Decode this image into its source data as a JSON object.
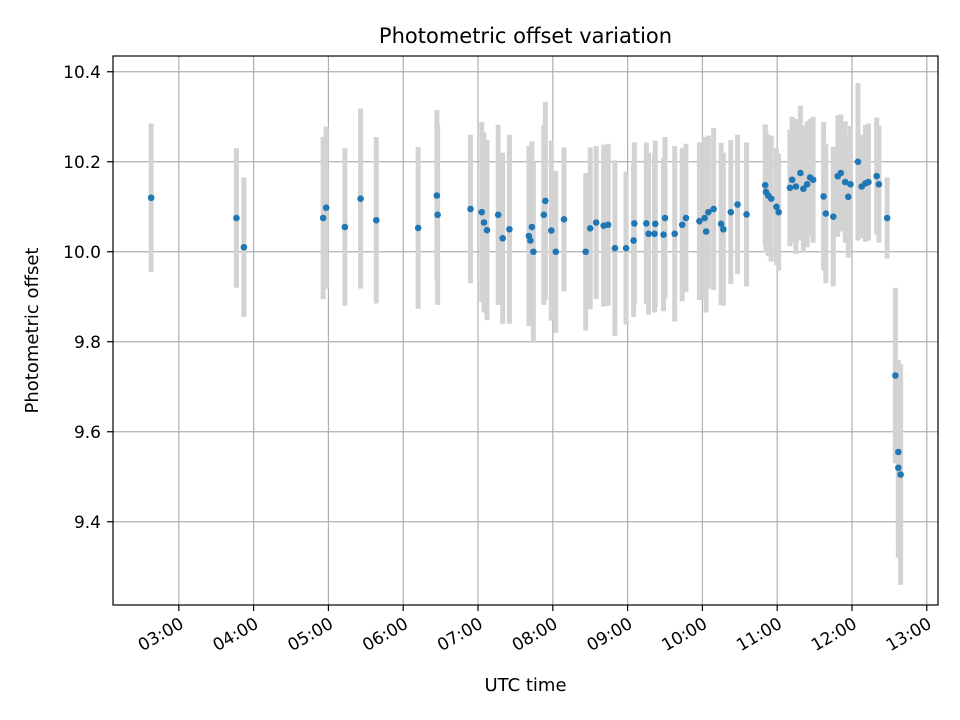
{
  "chart_data": {
    "type": "scatter",
    "title": "Photometric offset variation",
    "xlabel": "UTC time",
    "ylabel": "Photometric offset",
    "x_unit": "hours UTC",
    "xlim": [
      2.12,
      13.15
    ],
    "ylim": [
      9.215,
      10.435
    ],
    "xticks": [
      {
        "value": 3,
        "label": "03:00"
      },
      {
        "value": 4,
        "label": "04:00"
      },
      {
        "value": 5,
        "label": "05:00"
      },
      {
        "value": 6,
        "label": "06:00"
      },
      {
        "value": 7,
        "label": "07:00"
      },
      {
        "value": 8,
        "label": "08:00"
      },
      {
        "value": 9,
        "label": "09:00"
      },
      {
        "value": 10,
        "label": "10:00"
      },
      {
        "value": 11,
        "label": "11:00"
      },
      {
        "value": 12,
        "label": "12:00"
      },
      {
        "value": 13,
        "label": "13:00"
      }
    ],
    "yticks": [
      {
        "value": 9.4,
        "label": "9.4"
      },
      {
        "value": 9.6,
        "label": "9.6"
      },
      {
        "value": 9.8,
        "label": "9.8"
      },
      {
        "value": 10.0,
        "label": "10.0"
      },
      {
        "value": 10.2,
        "label": "10.2"
      },
      {
        "value": 10.4,
        "label": "10.4"
      }
    ],
    "grid": true,
    "colors": {
      "point": "#1f77b4",
      "errorbar": "#d3d3d3",
      "grid": "#b0b0b0",
      "axes": "#000000"
    },
    "series": [
      {
        "name": "offset",
        "points": [
          [
            2.63,
            10.12,
            0.165
          ],
          [
            3.77,
            10.075,
            0.155
          ],
          [
            3.87,
            10.01,
            0.155
          ],
          [
            4.93,
            10.075,
            0.18
          ],
          [
            4.97,
            10.098,
            0.18
          ],
          [
            5.22,
            10.055,
            0.175
          ],
          [
            5.43,
            10.118,
            0.2
          ],
          [
            5.64,
            10.07,
            0.185
          ],
          [
            6.2,
            10.053,
            0.18
          ],
          [
            6.45,
            10.125,
            0.19
          ],
          [
            6.46,
            10.082,
            0.2
          ],
          [
            6.9,
            10.095,
            0.165
          ],
          [
            7.05,
            10.088,
            0.2
          ],
          [
            7.08,
            10.065,
            0.2
          ],
          [
            7.12,
            10.048,
            0.2
          ],
          [
            7.27,
            10.082,
            0.2
          ],
          [
            7.33,
            10.03,
            0.19
          ],
          [
            7.42,
            10.05,
            0.21
          ],
          [
            7.68,
            10.035,
            0.2
          ],
          [
            7.7,
            10.025,
            0.19
          ],
          [
            7.72,
            10.055,
            0.19
          ],
          [
            7.74,
            10.0,
            0.2
          ],
          [
            7.88,
            10.082,
            0.2
          ],
          [
            7.9,
            10.113,
            0.22
          ],
          [
            7.98,
            10.047,
            0.2
          ],
          [
            8.04,
            10.0,
            0.18
          ],
          [
            8.15,
            10.072,
            0.16
          ],
          [
            8.44,
            10.0,
            0.175
          ],
          [
            8.5,
            10.052,
            0.18
          ],
          [
            8.58,
            10.065,
            0.17
          ],
          [
            8.68,
            10.058,
            0.18
          ],
          [
            8.74,
            10.06,
            0.18
          ],
          [
            8.83,
            10.008,
            0.195
          ],
          [
            8.98,
            10.008,
            0.17
          ],
          [
            9.08,
            10.025,
            0.17
          ],
          [
            9.09,
            10.063,
            0.18
          ],
          [
            9.25,
            10.063,
            0.18
          ],
          [
            9.28,
            10.04,
            0.18
          ],
          [
            9.36,
            10.04,
            0.175
          ],
          [
            9.37,
            10.062,
            0.185
          ],
          [
            9.48,
            10.038,
            0.17
          ],
          [
            9.5,
            10.075,
            0.18
          ],
          [
            9.63,
            10.04,
            0.195
          ],
          [
            9.73,
            10.06,
            0.17
          ],
          [
            9.78,
            10.075,
            0.165
          ],
          [
            9.96,
            10.068,
            0.175
          ],
          [
            10.03,
            10.075,
            0.18
          ],
          [
            10.05,
            10.045,
            0.18
          ],
          [
            10.08,
            10.088,
            0.17
          ],
          [
            10.15,
            10.095,
            0.18
          ],
          [
            10.25,
            10.062,
            0.18
          ],
          [
            10.28,
            10.05,
            0.17
          ],
          [
            10.38,
            10.088,
            0.16
          ],
          [
            10.47,
            10.105,
            0.155
          ],
          [
            10.59,
            10.083,
            0.16
          ],
          [
            10.84,
            10.148,
            0.135
          ],
          [
            10.85,
            10.133,
            0.135
          ],
          [
            10.88,
            10.125,
            0.135
          ],
          [
            10.92,
            10.118,
            0.14
          ],
          [
            10.99,
            10.1,
            0.13
          ],
          [
            11.02,
            10.088,
            0.13
          ],
          [
            11.17,
            10.142,
            0.13
          ],
          [
            11.2,
            10.16,
            0.14
          ],
          [
            11.25,
            10.145,
            0.15
          ],
          [
            11.31,
            10.175,
            0.15
          ],
          [
            11.35,
            10.14,
            0.14
          ],
          [
            11.4,
            10.15,
            0.14
          ],
          [
            11.44,
            10.165,
            0.13
          ],
          [
            11.48,
            10.16,
            0.14
          ],
          [
            11.62,
            10.123,
            0.165
          ],
          [
            11.65,
            10.085,
            0.155
          ],
          [
            11.75,
            10.078,
            0.155
          ],
          [
            11.81,
            10.168,
            0.135
          ],
          [
            11.85,
            10.175,
            0.13
          ],
          [
            11.91,
            10.155,
            0.135
          ],
          [
            11.95,
            10.122,
            0.135
          ],
          [
            11.98,
            10.15,
            0.13
          ],
          [
            12.08,
            10.2,
            0.175
          ],
          [
            12.13,
            10.145,
            0.115
          ],
          [
            12.18,
            10.152,
            0.13
          ],
          [
            12.22,
            10.155,
            0.13
          ],
          [
            12.33,
            10.168,
            0.13
          ],
          [
            12.36,
            10.15,
            0.13
          ],
          [
            12.47,
            10.075,
            0.09
          ],
          [
            12.58,
            9.725,
            0.195
          ],
          [
            12.62,
            9.555,
            0.205
          ],
          [
            12.62,
            9.52,
            0.2
          ],
          [
            12.65,
            9.505,
            0.245
          ]
        ]
      }
    ]
  }
}
